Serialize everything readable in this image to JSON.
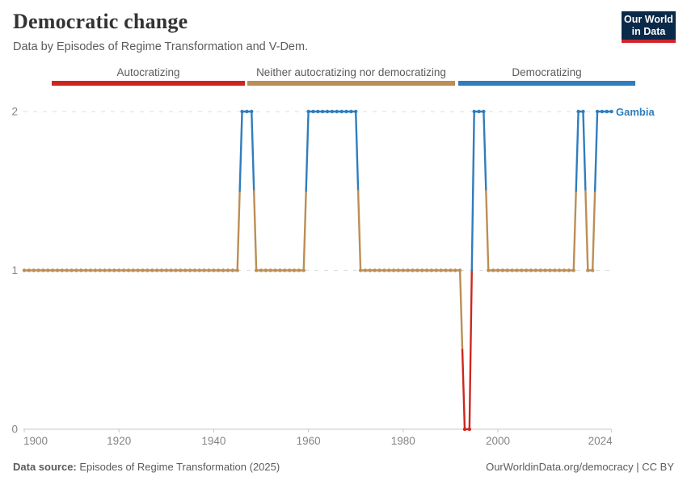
{
  "header": {
    "title": "Democratic change",
    "subtitle": "Data by Episodes of Regime Transformation and V-Dem.",
    "logo": {
      "line1": "Our World",
      "line2": "in Data"
    }
  },
  "legend": {
    "items": [
      {
        "label": "Autocratizing",
        "color": "#ce261f"
      },
      {
        "label": "Neither autocratizing nor democratizing",
        "color": "#bc8e55"
      },
      {
        "label": "Democratizing",
        "color": "#2f7dbe"
      }
    ]
  },
  "chart_data": {
    "type": "line",
    "entity": "Gambia",
    "title": "Democratic change",
    "xlabel": "",
    "ylabel": "",
    "x_range": [
      1900,
      2024
    ],
    "y_range": [
      0,
      2
    ],
    "x_ticks": [
      1900,
      1920,
      1940,
      1960,
      1980,
      2000,
      2024
    ],
    "y_ticks": [
      0,
      1,
      2
    ],
    "grid": "dashed horizontal at y=1 and y=2, solid axis at y=0",
    "legend_position": "top",
    "value_meanings": {
      "0": "Autocratizing",
      "1": "Neither autocratizing nor democratizing",
      "2": "Democratizing"
    },
    "category_colors": {
      "0": "#ce261f",
      "1": "#bc8e55",
      "2": "#2f7dbe"
    },
    "runs": [
      {
        "start_year": 1900,
        "end_year": 1945,
        "value": 1
      },
      {
        "start_year": 1946,
        "end_year": 1948,
        "value": 2
      },
      {
        "start_year": 1949,
        "end_year": 1959,
        "value": 1
      },
      {
        "start_year": 1960,
        "end_year": 1970,
        "value": 2
      },
      {
        "start_year": 1971,
        "end_year": 1992,
        "value": 1
      },
      {
        "start_year": 1993,
        "end_year": 1994,
        "value": 0
      },
      {
        "start_year": 1995,
        "end_year": 1997,
        "value": 2
      },
      {
        "start_year": 1998,
        "end_year": 2016,
        "value": 1
      },
      {
        "start_year": 2017,
        "end_year": 2018,
        "value": 2
      },
      {
        "start_year": 2019,
        "end_year": 2020,
        "value": 1
      },
      {
        "start_year": 2021,
        "end_year": 2024,
        "value": 2
      }
    ]
  },
  "footer": {
    "datasource_label": "Data source:",
    "datasource_value": " Episodes of Regime Transformation (2025)",
    "url": "OurWorldinData.org/democracy",
    "separator": " | ",
    "license": "CC BY"
  }
}
